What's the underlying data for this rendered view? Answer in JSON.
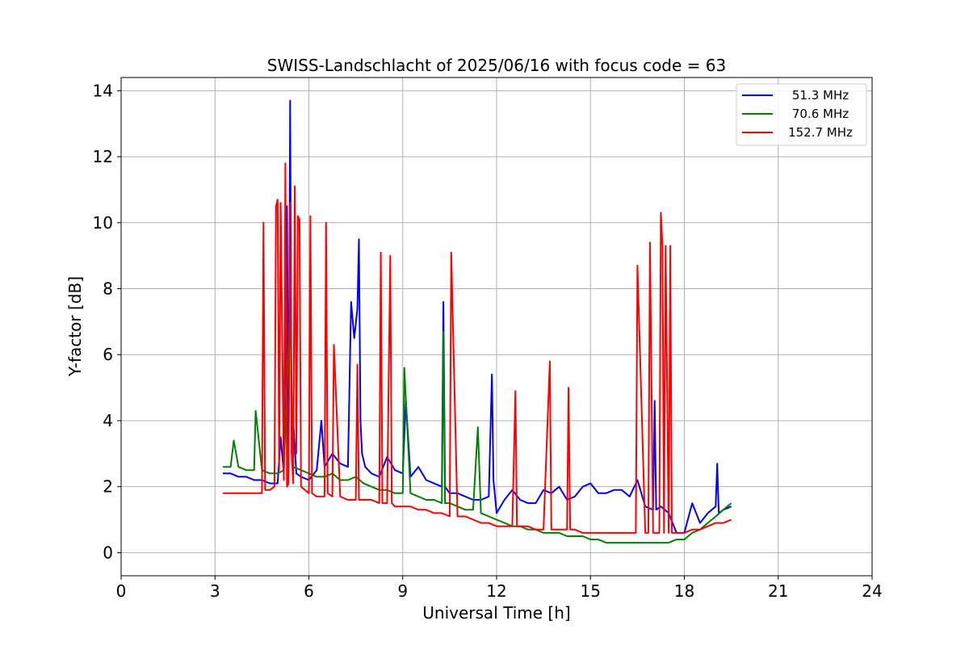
{
  "chart_data": {
    "type": "line",
    "title": "SWISS-Landschlacht of 2025/06/16 with focus code = 63",
    "xlabel": "Universal Time [h]",
    "ylabel": "Y-factor [dB]",
    "xlim": [
      0,
      24
    ],
    "ylim": [
      -0.7,
      14.4
    ],
    "xticks": [
      0,
      3,
      6,
      9,
      12,
      15,
      18,
      21,
      24
    ],
    "yticks": [
      0,
      2,
      4,
      6,
      8,
      10,
      12,
      14
    ],
    "grid": true,
    "legend_position": "top-right",
    "series": [
      {
        "name": "51.3 MHz",
        "color": "#0000ff",
        "x": [
          3.25,
          3.5,
          3.75,
          4.0,
          4.25,
          4.5,
          4.75,
          5.0,
          5.1,
          5.2,
          5.3,
          5.35,
          5.4,
          5.45,
          5.5,
          5.6,
          5.75,
          6.0,
          6.25,
          6.4,
          6.5,
          6.75,
          7.0,
          7.25,
          7.35,
          7.45,
          7.55,
          7.6,
          7.65,
          7.7,
          7.8,
          8.0,
          8.25,
          8.5,
          8.75,
          9.0,
          9.1,
          9.25,
          9.5,
          9.75,
          10.0,
          10.25,
          10.3,
          10.35,
          10.5,
          10.75,
          11.0,
          11.25,
          11.5,
          11.75,
          11.85,
          11.9,
          12.0,
          12.25,
          12.5,
          12.75,
          13.0,
          13.25,
          13.5,
          13.75,
          14.0,
          14.25,
          14.5,
          14.75,
          15.0,
          15.25,
          15.5,
          15.75,
          16.0,
          16.25,
          16.5,
          16.75,
          17.0,
          17.05,
          17.1,
          17.25,
          17.5,
          17.75,
          18.0,
          18.25,
          18.5,
          18.75,
          19.0,
          19.05,
          19.1,
          19.25,
          19.5
        ],
        "values": [
          2.4,
          2.4,
          2.3,
          2.3,
          2.2,
          2.2,
          2.1,
          2.1,
          3.5,
          2.4,
          10.5,
          2.5,
          13.7,
          3.0,
          4.0,
          2.4,
          2.3,
          2.2,
          2.5,
          4.0,
          2.6,
          3.0,
          2.7,
          2.6,
          7.6,
          6.5,
          7.4,
          9.5,
          4.0,
          3.0,
          2.6,
          2.4,
          2.3,
          2.9,
          2.5,
          2.4,
          4.6,
          2.3,
          2.6,
          2.2,
          2.1,
          2.0,
          7.6,
          2.0,
          1.8,
          1.8,
          1.7,
          1.6,
          1.6,
          1.7,
          5.4,
          2.2,
          1.2,
          1.6,
          1.9,
          1.6,
          1.5,
          1.5,
          1.9,
          1.8,
          2.0,
          1.6,
          1.7,
          2.0,
          2.1,
          1.8,
          1.8,
          1.9,
          1.9,
          1.7,
          2.2,
          1.4,
          1.3,
          4.6,
          1.3,
          1.4,
          1.2,
          0.6,
          0.6,
          1.5,
          0.9,
          1.2,
          1.4,
          2.7,
          1.2,
          1.3,
          1.4
        ]
      },
      {
        "name": "70.6 MHz",
        "color": "#008000",
        "x": [
          3.25,
          3.5,
          3.6,
          3.75,
          4.0,
          4.25,
          4.3,
          4.5,
          4.75,
          5.0,
          5.2,
          5.4,
          5.5,
          5.75,
          6.0,
          6.25,
          6.5,
          6.75,
          7.0,
          7.25,
          7.5,
          7.75,
          8.0,
          8.25,
          8.5,
          8.75,
          9.0,
          9.05,
          9.25,
          9.5,
          9.75,
          10.0,
          10.25,
          10.3,
          10.35,
          10.5,
          10.75,
          11.0,
          11.25,
          11.4,
          11.5,
          11.75,
          12.0,
          12.25,
          12.5,
          12.75,
          13.0,
          13.25,
          13.5,
          13.75,
          14.0,
          14.25,
          14.5,
          14.75,
          15.0,
          15.25,
          15.5,
          15.75,
          16.0,
          16.25,
          16.5,
          16.75,
          17.0,
          17.25,
          17.5,
          17.75,
          18.0,
          18.25,
          18.5,
          18.75,
          19.0,
          19.25,
          19.5
        ],
        "values": [
          2.6,
          2.6,
          3.4,
          2.6,
          2.5,
          2.5,
          4.3,
          2.5,
          2.4,
          2.4,
          2.5,
          7.6,
          2.6,
          2.5,
          2.4,
          2.3,
          2.3,
          2.4,
          2.2,
          2.2,
          2.3,
          2.1,
          2.0,
          1.9,
          1.9,
          1.8,
          1.8,
          5.6,
          1.8,
          1.7,
          1.6,
          1.6,
          1.5,
          6.7,
          1.5,
          1.5,
          1.4,
          1.3,
          1.3,
          3.8,
          1.2,
          1.1,
          1.0,
          0.9,
          0.8,
          0.8,
          0.7,
          0.7,
          0.6,
          0.6,
          0.6,
          0.5,
          0.5,
          0.5,
          0.4,
          0.4,
          0.3,
          0.3,
          0.3,
          0.3,
          0.3,
          0.3,
          0.3,
          0.3,
          0.3,
          0.4,
          0.4,
          0.6,
          0.7,
          0.9,
          1.1,
          1.3,
          1.5
        ]
      },
      {
        "name": "152.7 MHz",
        "color": "#ff0000",
        "x": [
          3.25,
          3.5,
          3.75,
          4.0,
          4.25,
          4.5,
          4.55,
          4.6,
          4.75,
          4.9,
          4.95,
          5.0,
          5.05,
          5.1,
          5.2,
          5.25,
          5.3,
          5.35,
          5.4,
          5.45,
          5.5,
          5.55,
          5.6,
          5.65,
          5.7,
          5.75,
          6.0,
          6.05,
          6.1,
          6.25,
          6.5,
          6.55,
          6.6,
          6.75,
          6.8,
          7.0,
          7.25,
          7.5,
          7.55,
          7.6,
          7.75,
          8.0,
          8.25,
          8.3,
          8.35,
          8.5,
          8.6,
          8.65,
          8.75,
          9.0,
          9.25,
          9.5,
          9.75,
          10.0,
          10.25,
          10.5,
          10.55,
          10.75,
          11.0,
          11.25,
          11.5,
          11.75,
          12.0,
          12.25,
          12.5,
          12.6,
          12.65,
          12.75,
          13.0,
          13.25,
          13.5,
          13.7,
          13.75,
          14.0,
          14.25,
          14.3,
          14.35,
          14.5,
          14.75,
          15.0,
          15.25,
          15.5,
          15.75,
          16.0,
          16.25,
          16.45,
          16.5,
          16.75,
          16.85,
          16.9,
          17.0,
          17.2,
          17.25,
          17.3,
          17.35,
          17.4,
          17.5,
          17.55,
          17.6,
          17.75,
          18.0,
          18.25,
          18.5,
          18.75,
          19.0,
          19.25,
          19.5
        ],
        "values": [
          1.8,
          1.8,
          1.8,
          1.8,
          1.8,
          1.8,
          10.0,
          1.9,
          1.9,
          2.0,
          10.5,
          10.7,
          2.5,
          10.6,
          2.2,
          11.8,
          2.0,
          2.1,
          10.6,
          3.0,
          2.1,
          11.1,
          3.0,
          10.2,
          10.1,
          2.0,
          1.8,
          10.2,
          1.8,
          1.7,
          1.7,
          10.0,
          1.8,
          1.7,
          6.3,
          1.7,
          1.6,
          1.6,
          5.7,
          1.6,
          1.6,
          1.6,
          1.5,
          9.1,
          1.5,
          1.5,
          9.0,
          1.5,
          1.4,
          1.4,
          1.4,
          1.3,
          1.3,
          1.2,
          1.2,
          1.1,
          9.1,
          1.1,
          1.1,
          1.0,
          0.9,
          0.9,
          0.8,
          0.8,
          0.8,
          4.9,
          0.8,
          0.8,
          0.8,
          0.7,
          0.7,
          5.8,
          0.7,
          0.7,
          0.7,
          5.0,
          0.7,
          0.7,
          0.6,
          0.6,
          0.6,
          0.6,
          0.6,
          0.6,
          0.6,
          0.6,
          8.7,
          0.6,
          0.6,
          9.4,
          0.6,
          0.6,
          10.3,
          9.3,
          0.6,
          9.3,
          0.6,
          9.3,
          0.6,
          0.6,
          0.6,
          0.7,
          0.7,
          0.8,
          0.9,
          0.9,
          1.0
        ]
      }
    ]
  }
}
